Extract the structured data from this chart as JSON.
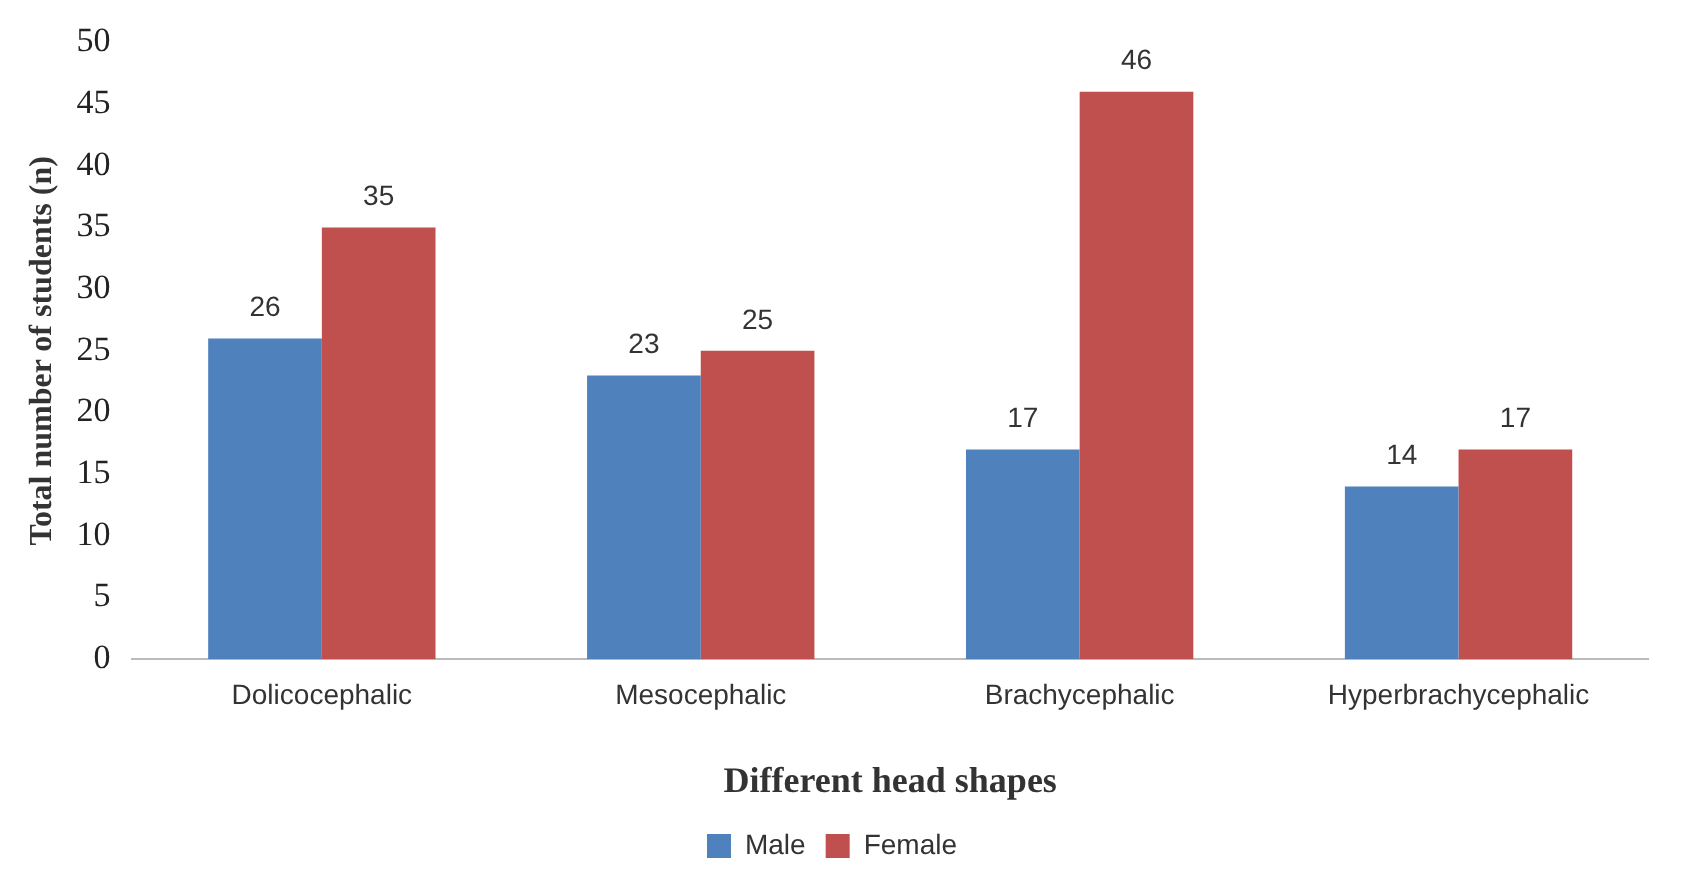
{
  "chart_data": {
    "type": "bar",
    "xlabel": "Different head shapes",
    "ylabel": "Total number of students (n)",
    "categories": [
      "Dolicocephalic",
      "Mesocephalic",
      "Brachycephalic",
      "Hyperbrachycephalic"
    ],
    "series": [
      {
        "name": "Male",
        "color": "#4f81bd",
        "values": [
          26,
          23,
          17,
          14
        ]
      },
      {
        "name": "Female",
        "color": "#c0504d",
        "values": [
          35,
          25,
          46,
          17
        ]
      }
    ],
    "ylim": [
      0,
      50
    ],
    "yticks": [
      0,
      5,
      10,
      15,
      20,
      25,
      30,
      35,
      40,
      45,
      50
    ],
    "grid": false,
    "legend": "bottom",
    "data_labels": true
  }
}
